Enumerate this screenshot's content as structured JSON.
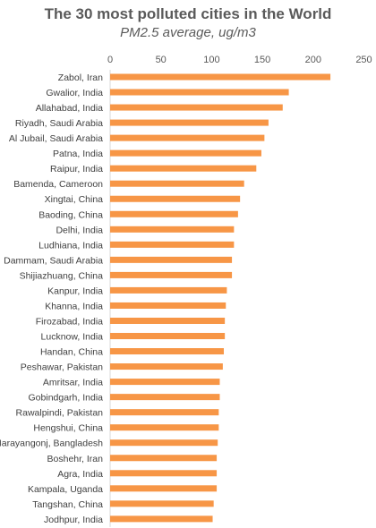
{
  "chart_data": {
    "type": "bar",
    "orientation": "horizontal",
    "title": "The 30 most polluted cities in the World",
    "subtitle": "PM2.5 average, ug/m3",
    "xlabel": "",
    "ylabel": "",
    "xlim": [
      0,
      250
    ],
    "xticks": [
      0,
      50,
      100,
      150,
      200,
      250
    ],
    "xaxis_position": "top",
    "grid": false,
    "legend": "none",
    "bar_color": "#f79646",
    "categories": [
      "Zabol, Iran",
      "Gwalior, India",
      "Allahabad, India",
      "Riyadh, Saudi Arabia",
      "Al Jubail, Saudi Arabia",
      "Patna, India",
      "Raipur, India",
      "Bamenda, Cameroon",
      "Xingtai, China",
      "Baoding, China",
      "Delhi, India",
      "Ludhiana, India",
      "Dammam, Saudi Arabia",
      "Shijiazhuang, China",
      "Kanpur, India",
      "Khanna, India",
      "Firozabad, India",
      "Lucknow, India",
      "Handan, China",
      "Peshawar, Pakistan",
      "Amritsar, India",
      "Gobindgarh, India",
      "Rawalpindi, Pakistan",
      "Hengshui, China",
      "Narayangonj, Bangladesh",
      "Boshehr, Iran",
      "Agra, India",
      "Kampala, Uganda",
      "Tangshan, China",
      "Jodhpur, India"
    ],
    "values": [
      217,
      176,
      170,
      156,
      152,
      149,
      144,
      132,
      128,
      126,
      122,
      122,
      120,
      120,
      115,
      114,
      113,
      113,
      112,
      111,
      108,
      108,
      107,
      107,
      106,
      105,
      105,
      105,
      102,
      101
    ]
  }
}
